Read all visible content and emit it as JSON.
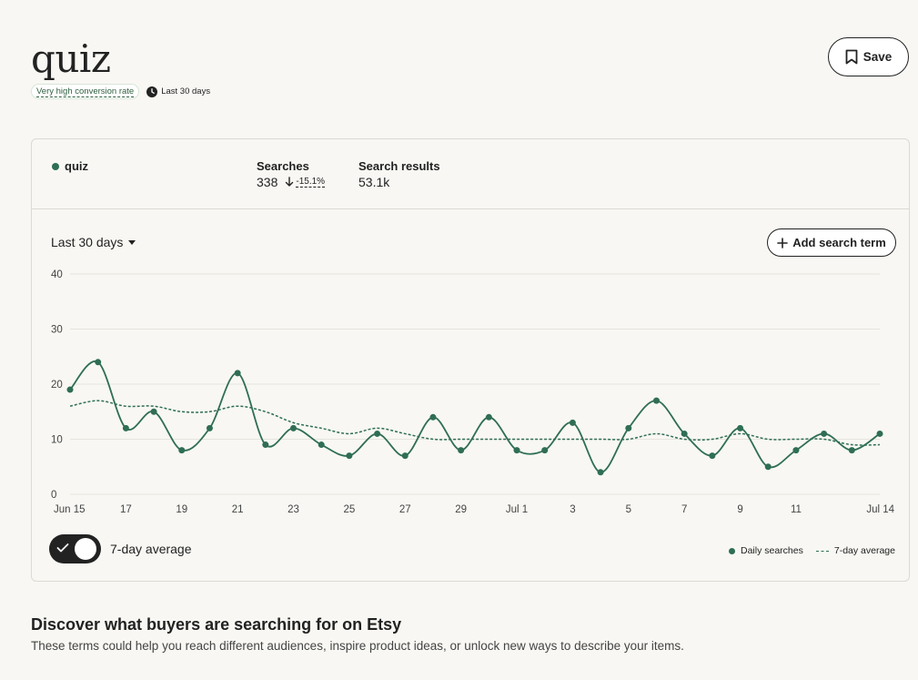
{
  "header": {
    "title": "quiz",
    "conversion_badge": "Very high conversion rate",
    "period_label": "Last 30 days",
    "save_label": "Save"
  },
  "summary": {
    "term": "quiz",
    "searches_label": "Searches",
    "searches_value": "338",
    "searches_change": "-15.1%",
    "results_label": "Search results",
    "results_value": "53.1k"
  },
  "controls": {
    "range_label": "Last 30 days",
    "add_term_label": "Add search term",
    "toggle_label": "7-day average",
    "toggle_on": true
  },
  "colors": {
    "series": "#2f6e55",
    "grid": "#e6e4de"
  },
  "chart_data": {
    "type": "line",
    "y_ticks": [
      0,
      10,
      20,
      30,
      40
    ],
    "ylim": [
      0,
      40
    ],
    "x_tick_labels": [
      "Jun 15",
      "17",
      "19",
      "21",
      "23",
      "25",
      "27",
      "29",
      "Jul 1",
      "3",
      "5",
      "7",
      "9",
      "11",
      "Jul 14"
    ],
    "x": [
      "Jun 15",
      "Jun 16",
      "Jun 17",
      "Jun 18",
      "Jun 19",
      "Jun 20",
      "Jun 21",
      "Jun 22",
      "Jun 23",
      "Jun 24",
      "Jun 25",
      "Jun 26",
      "Jun 27",
      "Jun 28",
      "Jun 29",
      "Jun 30",
      "Jul 1",
      "Jul 2",
      "Jul 3",
      "Jul 4",
      "Jul 5",
      "Jul 6",
      "Jul 7",
      "Jul 8",
      "Jul 9",
      "Jul 10",
      "Jul 11",
      "Jul 12",
      "Jul 13",
      "Jul 14"
    ],
    "series": [
      {
        "name": "Daily searches",
        "style": "solid-with-markers",
        "values": [
          19,
          24,
          12,
          15,
          8,
          12,
          22,
          9,
          12,
          9,
          7,
          11,
          7,
          14,
          8,
          14,
          8,
          8,
          13,
          4,
          12,
          17,
          11,
          7,
          12,
          5,
          8,
          11,
          8,
          11
        ]
      },
      {
        "name": "7-day average",
        "style": "dashed",
        "values": [
          16,
          17,
          16,
          16,
          15,
          15,
          16,
          15,
          13,
          12,
          11,
          12,
          11,
          10,
          10,
          10,
          10,
          10,
          10,
          10,
          10,
          11,
          10,
          10,
          11,
          10,
          10,
          10,
          9,
          9
        ]
      }
    ],
    "grid": true,
    "legend": "bottom-right"
  },
  "discover": {
    "title": "Discover what buyers are searching for on Etsy",
    "subtitle": "These terms could help you reach different audiences, inspire product ideas, or unlock new ways to describe your items."
  }
}
